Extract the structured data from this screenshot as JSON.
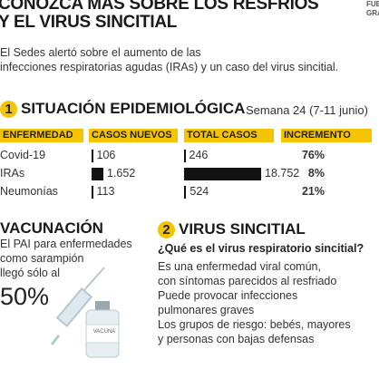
{
  "header": {
    "title_lines": [
      "CONOZCA MÁS SOBRE LOS RESFRÍOS",
      "Y EL VIRUS SINCITIAL"
    ],
    "corner_lines": [
      "FUE",
      "GRA"
    ]
  },
  "intro": [
    "El Sedes alertó sobre el aumento de las",
    "infecciones respiratorias agudas (IRAs) y un caso del virus sincitial."
  ],
  "section1": {
    "number": "1",
    "title": "SITUACIÓN EPIDEMIOLÓGICA",
    "subtitle": "Semana 24 (7-11 junio)",
    "table": {
      "columns": [
        "ENFERMEDAD",
        "CASOS NUEVOS",
        "TOTAL CASOS",
        "INCREMENTO"
      ],
      "rows": [
        [
          "Covid-19",
          {
            "value": 106,
            "label": "106"
          },
          {
            "value": 246,
            "label": "246"
          },
          "76%"
        ],
        [
          "IRAs",
          {
            "value": 1652,
            "label": "1.652"
          },
          {
            "value": 18752,
            "label": "18.752"
          },
          "8%"
        ],
        [
          "Neumonías",
          {
            "value": 113,
            "label": "113"
          },
          {
            "value": 524,
            "label": "524"
          },
          "21%"
        ]
      ]
    }
  },
  "vaccination": {
    "title": "VACUNACIÓN",
    "lines": [
      "El PAI para enfermedades",
      "como sarampión",
      "llegó sólo al"
    ],
    "percent": "50%",
    "vial_label": "VACUNA"
  },
  "section2": {
    "number": "2",
    "title": "VIRUS SINCITIAL",
    "question": "¿Qué es el virus respiratorio sincitial?",
    "lines": [
      "Es una enfermedad viral común,",
      "con síntomas parecidos al resfriado",
      "Puede provocar infecciones",
      "pulmonares graves",
      "Los grupos de riesgo: bebés, mayores",
      "y personas con bajas defensas"
    ]
  }
}
